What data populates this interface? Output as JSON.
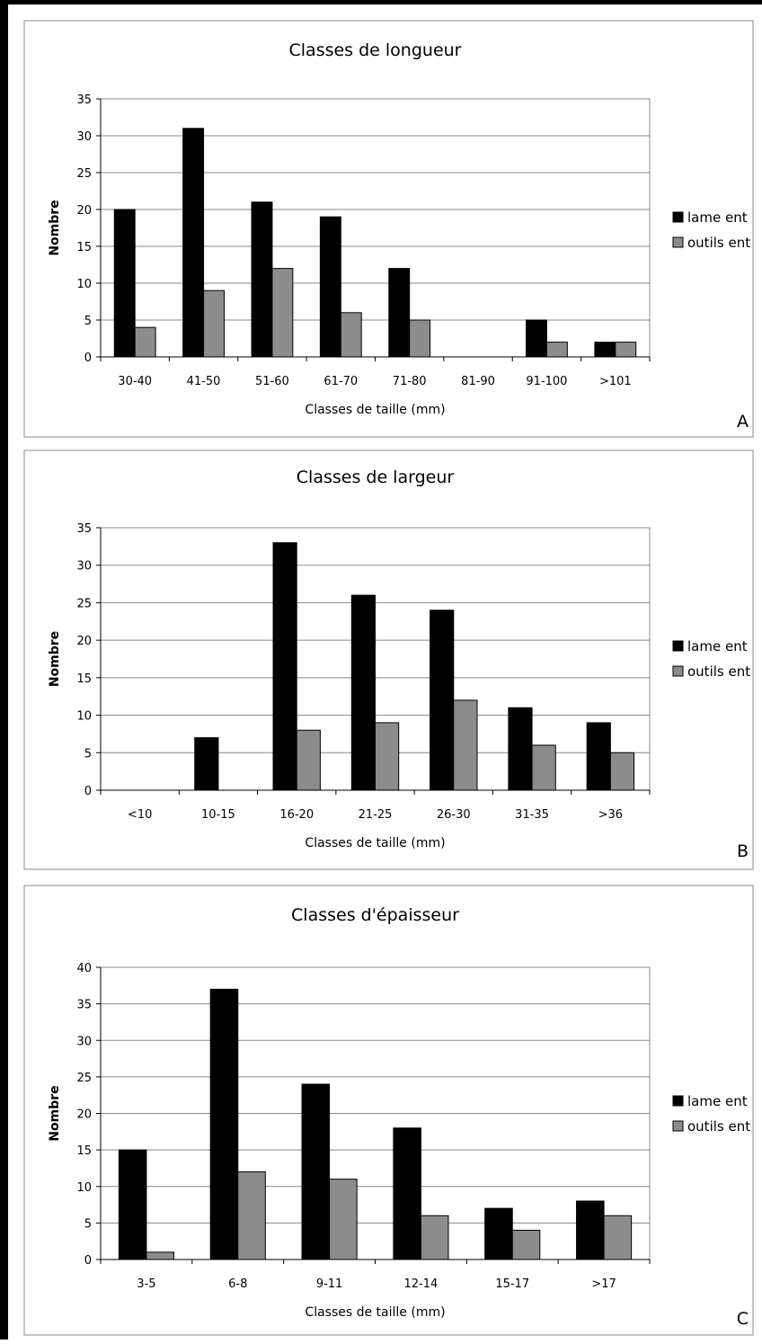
{
  "chart_data": [
    {
      "type": "bar",
      "title": "Classes de longueur",
      "xlabel": "Classes de taille (mm)",
      "ylabel": "Nombre",
      "ylim": [
        0,
        35
      ],
      "yticks": [
        0,
        5,
        10,
        15,
        20,
        25,
        30,
        35
      ],
      "categories": [
        "30-40",
        "41-50",
        "51-60",
        "61-70",
        "71-80",
        "81-90",
        "91-100",
        ">101"
      ],
      "series": [
        {
          "name": "lame ent",
          "color": "#000000",
          "values": [
            20,
            31,
            21,
            19,
            12,
            0,
            5,
            2
          ]
        },
        {
          "name": "outils ent",
          "color": "#8c8c8c",
          "values": [
            4,
            9,
            12,
            6,
            5,
            0,
            2,
            2
          ]
        }
      ],
      "grid": true,
      "legend": "right",
      "panel_label": "A"
    },
    {
      "type": "bar",
      "title": "Classes de largeur",
      "xlabel": "Classes de taille (mm)",
      "ylabel": "Nombre",
      "ylim": [
        0,
        35
      ],
      "yticks": [
        0,
        5,
        10,
        15,
        20,
        25,
        30,
        35
      ],
      "categories": [
        "<10",
        "10-15",
        "16-20",
        "21-25",
        "26-30",
        "31-35",
        ">36"
      ],
      "series": [
        {
          "name": "lame ent",
          "color": "#000000",
          "values": [
            0,
            7,
            33,
            26,
            24,
            11,
            9
          ]
        },
        {
          "name": "outils ent",
          "color": "#8c8c8c",
          "values": [
            0,
            0,
            8,
            9,
            12,
            6,
            5
          ]
        }
      ],
      "grid": true,
      "legend": "right",
      "panel_label": "B"
    },
    {
      "type": "bar",
      "title": "Classes d'épaisseur",
      "xlabel": "Classes de taille (mm)",
      "ylabel": "Nombre",
      "ylim": [
        0,
        40
      ],
      "yticks": [
        0,
        5,
        10,
        15,
        20,
        25,
        30,
        35,
        40
      ],
      "categories": [
        "3-5",
        "6-8",
        "9-11",
        "12-14",
        "15-17",
        ">17"
      ],
      "series": [
        {
          "name": "lame ent",
          "color": "#000000",
          "values": [
            15,
            37,
            24,
            18,
            7,
            8
          ]
        },
        {
          "name": "outils ent",
          "color": "#8c8c8c",
          "values": [
            1,
            12,
            11,
            6,
            4,
            6
          ]
        }
      ],
      "grid": true,
      "legend": "right",
      "panel_label": "C"
    }
  ]
}
